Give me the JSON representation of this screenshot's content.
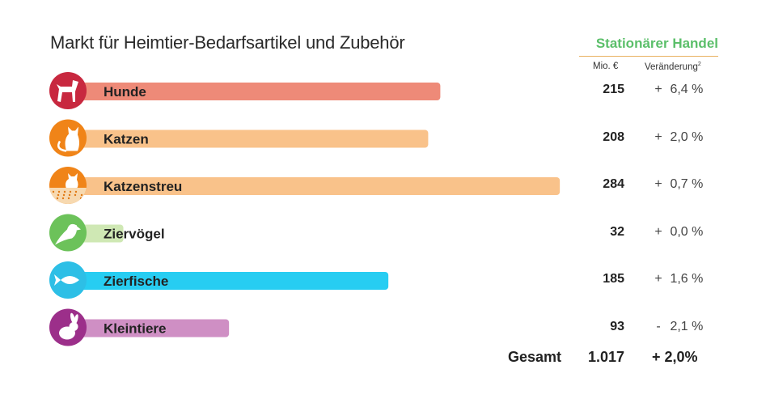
{
  "title": "Markt für Heimtier-Bedarfsartikel und Zubehör",
  "section_header": "Stationärer Handel",
  "col_value_header": "Mio. €",
  "col_change_header": "Veränderung",
  "col_change_footnote": "2",
  "total": {
    "label": "Gesamt",
    "value": "1.017",
    "change": "+ 2,0%"
  },
  "chart_data": {
    "type": "bar",
    "orientation": "horizontal",
    "title": "Markt für Heimtier-Bedarfsartikel und Zubehör",
    "xlim": [
      0,
      290
    ],
    "categories": [
      "Hunde",
      "Katzen",
      "Katzenstreu",
      "Ziervögel",
      "Zierfische",
      "Kleintiere"
    ],
    "values": [
      215,
      208,
      284,
      32,
      185,
      93
    ],
    "value_labels": [
      "215",
      "208",
      "284",
      "32",
      "185",
      "93"
    ],
    "change_signs": [
      "+",
      "+",
      "+",
      "+",
      "+",
      "-"
    ],
    "change_values": [
      "6,4 %",
      "2,0 %",
      "0,7 %",
      "0,0 %",
      "1,6 %",
      "2,1 %"
    ],
    "bar_colors": [
      "#ee8a78",
      "#f9c28a",
      "#f9c28a",
      "#cfe8b4",
      "#27cdf2",
      "#cf8fc4"
    ],
    "icon_colors": [
      "#c8283f",
      "#f08418",
      "#f08418",
      "#6cc25a",
      "#2dbfe6",
      "#9c2f8a"
    ],
    "icons": [
      "dog-icon",
      "cat-icon",
      "cat-litter-icon",
      "bird-icon",
      "fish-icon",
      "rabbit-icon"
    ]
  }
}
